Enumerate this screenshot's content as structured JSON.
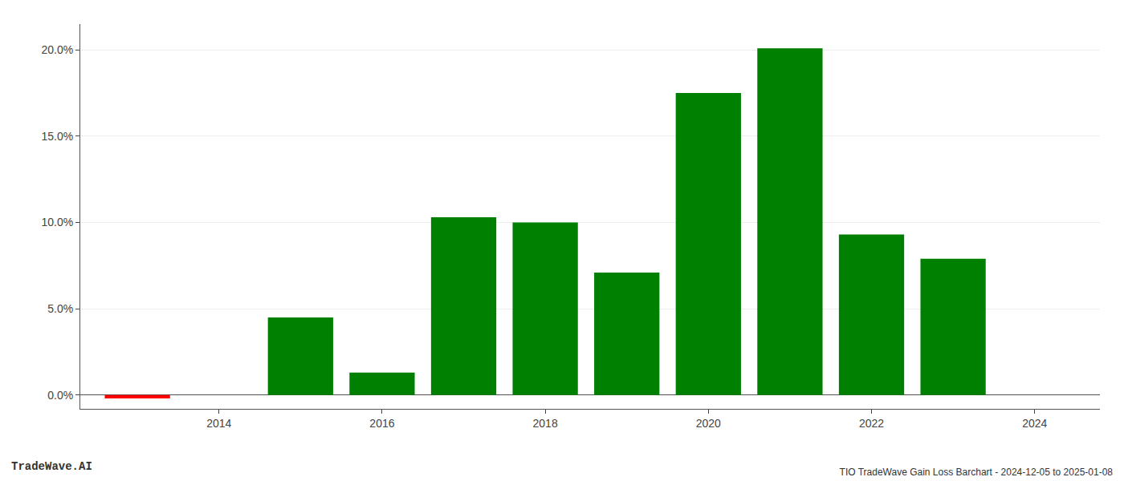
{
  "chart_data": {
    "type": "bar",
    "title": "TIO TradeWave Gain Loss Barchart - 2024-12-05 to 2025-01-08",
    "annotations": [
      "TradeWave.AI"
    ],
    "x": [
      2013,
      2015,
      2016,
      2017,
      2018,
      2019,
      2020,
      2021,
      2022,
      2023
    ],
    "values": [
      -0.002,
      0.045,
      0.013,
      0.103,
      0.1,
      0.071,
      0.175,
      0.201,
      0.093,
      0.079
    ],
    "colors": [
      "#ff0000",
      "#008000",
      "#008000",
      "#008000",
      "#008000",
      "#008000",
      "#008000",
      "#008000",
      "#008000",
      "#008000"
    ],
    "xlim": [
      2012.3,
      2024.8
    ],
    "xticks": [
      2014,
      2016,
      2018,
      2020,
      2022,
      2024
    ],
    "ylim": [
      -0.008,
      0.215
    ],
    "yticks": [
      {
        "value": 0.0,
        "label": "0.0%"
      },
      {
        "value": 0.05,
        "label": "5.0%"
      },
      {
        "value": 0.1,
        "label": "10.0%"
      },
      {
        "value": 0.15,
        "label": "15.0%"
      },
      {
        "value": 0.2,
        "label": "20.0%"
      }
    ],
    "grid": true
  }
}
